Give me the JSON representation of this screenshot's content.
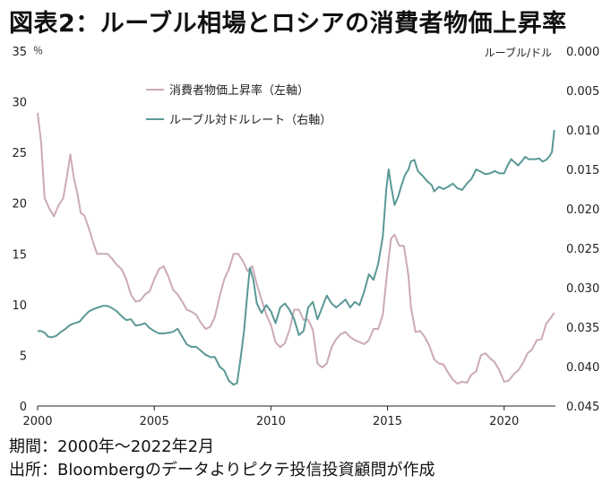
{
  "title": "図表2：ルーブル相場とロシアの消費者物価上昇率",
  "footer": {
    "period": "期間：2000年～2022年2月",
    "source": "出所：Bloombergのデータよりピクテ投信投資顧問が作成"
  },
  "chart_data": {
    "type": "line",
    "left_axis": {
      "unit": "％",
      "min": 0,
      "max": 35,
      "ticks": [
        0,
        5,
        10,
        15,
        20,
        25,
        30,
        35
      ]
    },
    "right_axis": {
      "unit": "ルーブル/ドル",
      "min": 0.0,
      "max": 0.045,
      "inverted": true,
      "ticks": [
        "0.000",
        "0.005",
        "0.010",
        "0.015",
        "0.020",
        "0.025",
        "0.030",
        "0.035",
        "0.040",
        "0.045"
      ]
    },
    "x_axis": {
      "min": 2000,
      "max": 2022.2,
      "ticks": [
        "2000",
        "2005",
        "2010",
        "2015",
        "2020"
      ]
    },
    "grid": false,
    "legend_position": "top-center",
    "series": [
      {
        "name": "消費者物価上昇率（左軸）",
        "axis": "left",
        "color": "#cbaab6",
        "points": [
          [
            2000.0,
            28.9
          ],
          [
            2000.15,
            26
          ],
          [
            2000.3,
            20.5
          ],
          [
            2000.5,
            19.5
          ],
          [
            2000.7,
            18.7
          ],
          [
            2000.9,
            19.8
          ],
          [
            2001.1,
            20.5
          ],
          [
            2001.25,
            22.5
          ],
          [
            2001.4,
            24.8
          ],
          [
            2001.55,
            22.5
          ],
          [
            2001.7,
            21
          ],
          [
            2001.85,
            19
          ],
          [
            2002.0,
            18.8
          ],
          [
            2002.2,
            17.5
          ],
          [
            2002.4,
            16
          ],
          [
            2002.55,
            15
          ],
          [
            2002.75,
            15
          ],
          [
            2003.0,
            15
          ],
          [
            2003.2,
            14.5
          ],
          [
            2003.4,
            13.9
          ],
          [
            2003.6,
            13.5
          ],
          [
            2003.8,
            12.5
          ],
          [
            2004.0,
            11
          ],
          [
            2004.2,
            10.3
          ],
          [
            2004.4,
            10.4
          ],
          [
            2004.6,
            11
          ],
          [
            2004.8,
            11.3
          ],
          [
            2005.0,
            12.5
          ],
          [
            2005.2,
            13.5
          ],
          [
            2005.4,
            13.8
          ],
          [
            2005.6,
            12.8
          ],
          [
            2005.8,
            11.5
          ],
          [
            2006.0,
            11
          ],
          [
            2006.2,
            10.3
          ],
          [
            2006.4,
            9.5
          ],
          [
            2006.6,
            9.3
          ],
          [
            2006.8,
            9.0
          ],
          [
            2007.0,
            8.2
          ],
          [
            2007.2,
            7.6
          ],
          [
            2007.4,
            7.8
          ],
          [
            2007.6,
            8.8
          ],
          [
            2007.8,
            10.8
          ],
          [
            2008.0,
            12.5
          ],
          [
            2008.2,
            13.5
          ],
          [
            2008.4,
            15
          ],
          [
            2008.6,
            15
          ],
          [
            2008.8,
            14.3
          ],
          [
            2009.0,
            13.3
          ],
          [
            2009.2,
            13.8
          ],
          [
            2009.4,
            12
          ],
          [
            2009.6,
            10.5
          ],
          [
            2009.8,
            9
          ],
          [
            2010.0,
            8
          ],
          [
            2010.2,
            6.3
          ],
          [
            2010.4,
            5.8
          ],
          [
            2010.6,
            6.2
          ],
          [
            2010.8,
            7.5
          ],
          [
            2011.0,
            9.5
          ],
          [
            2011.2,
            9.5
          ],
          [
            2011.4,
            8.5
          ],
          [
            2011.6,
            8.5
          ],
          [
            2011.8,
            7.5
          ],
          [
            2012.0,
            4.2
          ],
          [
            2012.2,
            3.8
          ],
          [
            2012.4,
            4.2
          ],
          [
            2012.6,
            5.8
          ],
          [
            2012.8,
            6.6
          ],
          [
            2013.0,
            7.1
          ],
          [
            2013.2,
            7.3
          ],
          [
            2013.4,
            6.8
          ],
          [
            2013.6,
            6.5
          ],
          [
            2013.8,
            6.3
          ],
          [
            2014.0,
            6.1
          ],
          [
            2014.2,
            6.5
          ],
          [
            2014.4,
            7.6
          ],
          [
            2014.6,
            7.6
          ],
          [
            2014.8,
            9.0
          ],
          [
            2015.0,
            13.5
          ],
          [
            2015.15,
            16.5
          ],
          [
            2015.3,
            16.9
          ],
          [
            2015.5,
            15.8
          ],
          [
            2015.7,
            15.8
          ],
          [
            2015.9,
            12.8
          ],
          [
            2016.0,
            9.8
          ],
          [
            2016.2,
            7.3
          ],
          [
            2016.4,
            7.4
          ],
          [
            2016.6,
            6.8
          ],
          [
            2016.8,
            5.9
          ],
          [
            2017.0,
            4.6
          ],
          [
            2017.2,
            4.2
          ],
          [
            2017.4,
            4.1
          ],
          [
            2017.6,
            3.3
          ],
          [
            2017.8,
            2.6
          ],
          [
            2018.0,
            2.2
          ],
          [
            2018.2,
            2.4
          ],
          [
            2018.4,
            2.3
          ],
          [
            2018.6,
            3.1
          ],
          [
            2018.8,
            3.4
          ],
          [
            2019.0,
            5.0
          ],
          [
            2019.2,
            5.2
          ],
          [
            2019.4,
            4.7
          ],
          [
            2019.6,
            4.3
          ],
          [
            2019.8,
            3.5
          ],
          [
            2020.0,
            2.4
          ],
          [
            2020.2,
            2.5
          ],
          [
            2020.4,
            3.1
          ],
          [
            2020.6,
            3.5
          ],
          [
            2020.8,
            4.2
          ],
          [
            2021.0,
            5.2
          ],
          [
            2021.2,
            5.6
          ],
          [
            2021.4,
            6.5
          ],
          [
            2021.6,
            6.6
          ],
          [
            2021.8,
            8.1
          ],
          [
            2022.0,
            8.7
          ],
          [
            2022.15,
            9.2
          ]
        ]
      },
      {
        "name": "ルーブル対ドルレート（右軸）",
        "axis": "right",
        "color": "#5a9896",
        "points": [
          [
            2000.0,
            0.0355
          ],
          [
            2000.15,
            0.0355
          ],
          [
            2000.3,
            0.0357
          ],
          [
            2000.45,
            0.0362
          ],
          [
            2000.6,
            0.0363
          ],
          [
            2000.8,
            0.0361
          ],
          [
            2001.0,
            0.0356
          ],
          [
            2001.2,
            0.0352
          ],
          [
            2001.4,
            0.0347
          ],
          [
            2001.6,
            0.0345
          ],
          [
            2001.8,
            0.0343
          ],
          [
            2002.0,
            0.0336
          ],
          [
            2002.2,
            0.033
          ],
          [
            2002.4,
            0.0327
          ],
          [
            2002.6,
            0.0325
          ],
          [
            2002.8,
            0.0323
          ],
          [
            2003.0,
            0.0323
          ],
          [
            2003.2,
            0.0326
          ],
          [
            2003.4,
            0.033
          ],
          [
            2003.6,
            0.0336
          ],
          [
            2003.8,
            0.0341
          ],
          [
            2004.0,
            0.034
          ],
          [
            2004.2,
            0.0348
          ],
          [
            2004.4,
            0.0347
          ],
          [
            2004.6,
            0.0345
          ],
          [
            2004.8,
            0.0351
          ],
          [
            2005.0,
            0.0355
          ],
          [
            2005.2,
            0.0358
          ],
          [
            2005.4,
            0.0358
          ],
          [
            2005.6,
            0.0357
          ],
          [
            2005.8,
            0.0356
          ],
          [
            2006.0,
            0.0352
          ],
          [
            2006.2,
            0.0362
          ],
          [
            2006.4,
            0.0372
          ],
          [
            2006.6,
            0.0375
          ],
          [
            2006.8,
            0.0375
          ],
          [
            2007.0,
            0.038
          ],
          [
            2007.2,
            0.0385
          ],
          [
            2007.4,
            0.0388
          ],
          [
            2007.6,
            0.0388
          ],
          [
            2007.8,
            0.04
          ],
          [
            2008.0,
            0.0405
          ],
          [
            2008.2,
            0.0418
          ],
          [
            2008.4,
            0.0423
          ],
          [
            2008.55,
            0.0421
          ],
          [
            2008.7,
            0.039
          ],
          [
            2008.85,
            0.0355
          ],
          [
            2009.0,
            0.0305
          ],
          [
            2009.1,
            0.0275
          ],
          [
            2009.25,
            0.029
          ],
          [
            2009.4,
            0.032
          ],
          [
            2009.6,
            0.0332
          ],
          [
            2009.8,
            0.0322
          ],
          [
            2010.0,
            0.033
          ],
          [
            2010.2,
            0.0345
          ],
          [
            2010.4,
            0.0325
          ],
          [
            2010.6,
            0.032
          ],
          [
            2010.8,
            0.0328
          ],
          [
            2011.0,
            0.034
          ],
          [
            2011.2,
            0.036
          ],
          [
            2011.4,
            0.0355
          ],
          [
            2011.6,
            0.0325
          ],
          [
            2011.8,
            0.0318
          ],
          [
            2012.0,
            0.034
          ],
          [
            2012.2,
            0.0325
          ],
          [
            2012.4,
            0.031
          ],
          [
            2012.6,
            0.032
          ],
          [
            2012.8,
            0.0325
          ],
          [
            2013.0,
            0.032
          ],
          [
            2013.2,
            0.0315
          ],
          [
            2013.4,
            0.0325
          ],
          [
            2013.6,
            0.0318
          ],
          [
            2013.8,
            0.0322
          ],
          [
            2014.0,
            0.0305
          ],
          [
            2014.2,
            0.0283
          ],
          [
            2014.4,
            0.029
          ],
          [
            2014.6,
            0.027
          ],
          [
            2014.8,
            0.0235
          ],
          [
            2014.95,
            0.0175
          ],
          [
            2015.05,
            0.015
          ],
          [
            2015.15,
            0.017
          ],
          [
            2015.3,
            0.0195
          ],
          [
            2015.45,
            0.0185
          ],
          [
            2015.6,
            0.017
          ],
          [
            2015.75,
            0.0157
          ],
          [
            2015.9,
            0.015
          ],
          [
            2016.0,
            0.014
          ],
          [
            2016.15,
            0.0138
          ],
          [
            2016.3,
            0.0152
          ],
          [
            2016.5,
            0.0158
          ],
          [
            2016.7,
            0.0165
          ],
          [
            2016.9,
            0.017
          ],
          [
            2017.0,
            0.0178
          ],
          [
            2017.2,
            0.0172
          ],
          [
            2017.4,
            0.0175
          ],
          [
            2017.6,
            0.0172
          ],
          [
            2017.8,
            0.0168
          ],
          [
            2018.0,
            0.0174
          ],
          [
            2018.2,
            0.0176
          ],
          [
            2018.4,
            0.0168
          ],
          [
            2018.6,
            0.0162
          ],
          [
            2018.8,
            0.015
          ],
          [
            2019.0,
            0.0153
          ],
          [
            2019.2,
            0.0156
          ],
          [
            2019.4,
            0.0155
          ],
          [
            2019.6,
            0.0152
          ],
          [
            2019.8,
            0.0155
          ],
          [
            2020.0,
            0.0155
          ],
          [
            2020.15,
            0.0145
          ],
          [
            2020.3,
            0.0137
          ],
          [
            2020.45,
            0.0141
          ],
          [
            2020.6,
            0.0145
          ],
          [
            2020.75,
            0.014
          ],
          [
            2020.9,
            0.0134
          ],
          [
            2021.05,
            0.0137
          ],
          [
            2021.2,
            0.0137
          ],
          [
            2021.35,
            0.0137
          ],
          [
            2021.5,
            0.0136
          ],
          [
            2021.65,
            0.014
          ],
          [
            2021.8,
            0.0138
          ],
          [
            2021.95,
            0.0133
          ],
          [
            2022.05,
            0.0128
          ],
          [
            2022.15,
            0.01
          ]
        ]
      }
    ]
  }
}
